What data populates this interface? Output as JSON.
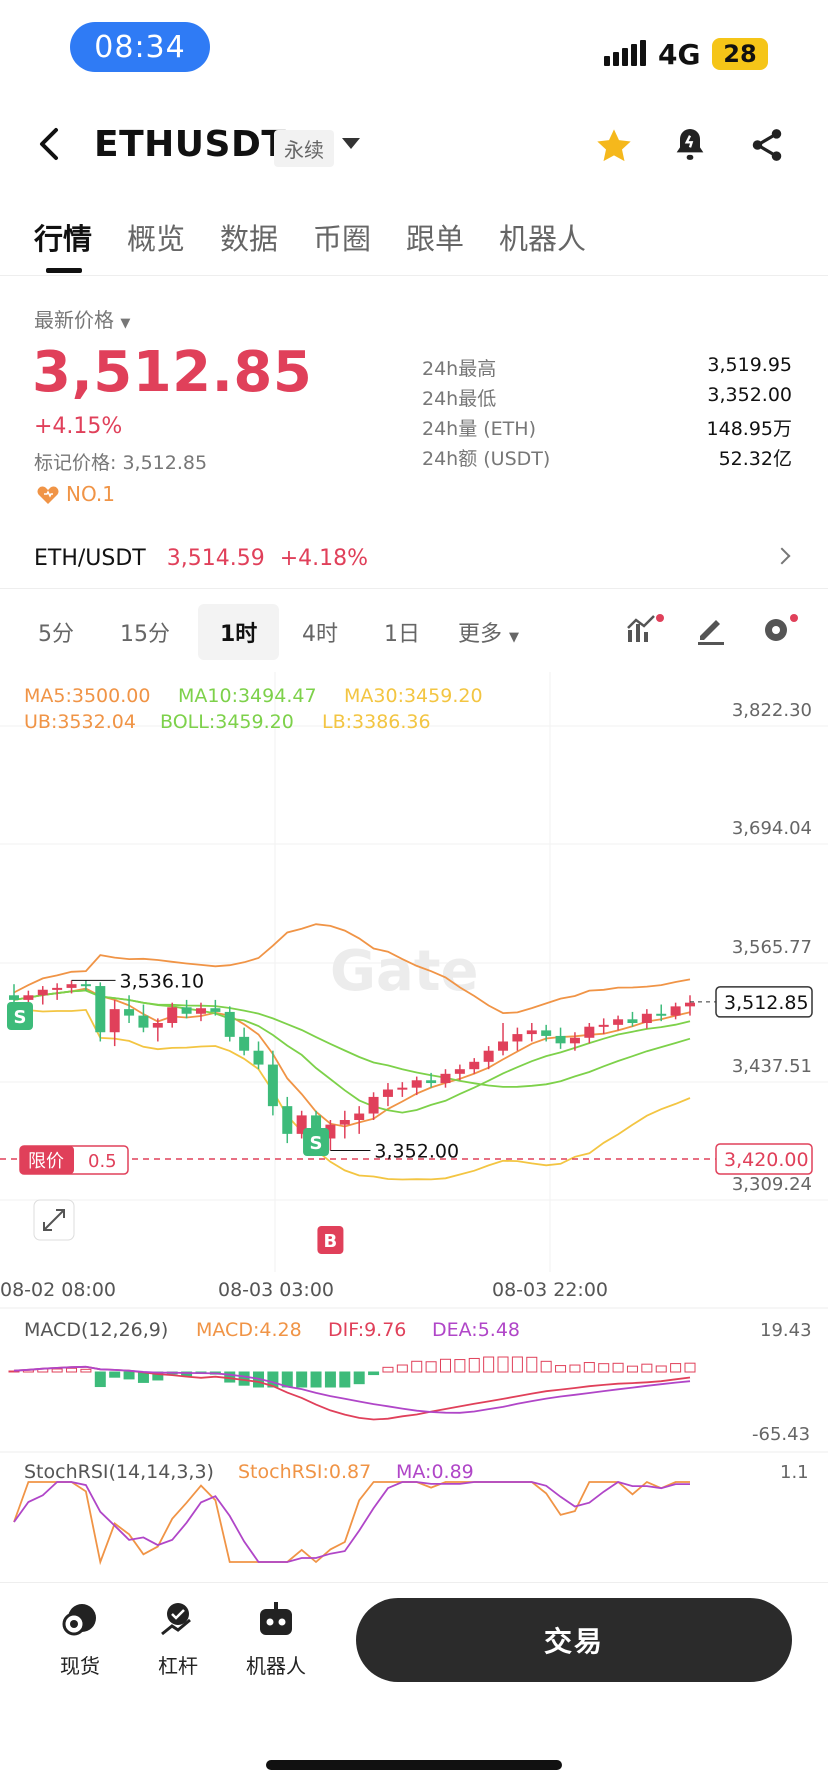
{
  "status": {
    "time": "08:34",
    "network": "4G",
    "battery": "28"
  },
  "header": {
    "symbol": "ETHUSDT",
    "contract_type": "永续"
  },
  "tabs": [
    "行情",
    "概览",
    "数据",
    "币圈",
    "跟单",
    "机器人"
  ],
  "price_block": {
    "label": "最新价格",
    "last_price": "3,512.85",
    "change_pct": "+4.15%",
    "mark_price": "标记价格: 3,512.85",
    "rank": "NO.1"
  },
  "stats": [
    {
      "label": "24h最高",
      "value": "3,519.95"
    },
    {
      "label": "24h最低",
      "value": "3,352.00"
    },
    {
      "label": "24h量 (ETH)",
      "value": "148.95万"
    },
    {
      "label": "24h额 (USDT)",
      "value": "52.32亿"
    }
  ],
  "spot_pair": {
    "name": "ETH/USDT",
    "price": "3,514.59",
    "change": "+4.18%"
  },
  "intervals": [
    "5分",
    "15分",
    "1时",
    "4时",
    "1日",
    "更多"
  ],
  "selected_interval": "1时",
  "chart_data": {
    "type": "candlestick",
    "indicators_main": {
      "MA5": "MA5:3500.00",
      "MA10": "MA10:3494.47",
      "MA30": "MA30:3459.20",
      "UB": "UB:3532.04",
      "BOLL": "BOLL:3459.20",
      "LB": "LB:3386.36"
    },
    "price_axis": [
      "3,822.30",
      "3,694.04",
      "3,565.77",
      "3,437.51",
      "3,309.24"
    ],
    "current_price_tag": "3,512.85",
    "limit_order": {
      "label": "限价",
      "qty": "0.5",
      "price": "3,420.00"
    },
    "high_annot": "3,536.10",
    "low_annot": "3,352.00",
    "signals": {
      "sell": "S",
      "buy": "B"
    },
    "time_axis": [
      "08-02 08:00",
      "08-03 03:00",
      "08-03 22:00"
    ],
    "watermark": "Gate",
    "macd": {
      "label": "MACD(12,26,9)",
      "macd": "MACD:4.28",
      "dif": "DIF:9.76",
      "dea": "DEA:5.48",
      "axis_top": "19.43",
      "axis_bottom": "-65.43"
    },
    "stochrsi": {
      "label": "StochRSI(14,14,3,3)",
      "value": "StochRSI:0.87",
      "ma": "MA:0.89",
      "axis_top": "1.1"
    },
    "candles": [
      [
        3520,
        3532,
        3505,
        3515
      ],
      [
        3515,
        3525,
        3500,
        3520
      ],
      [
        3520,
        3530,
        3510,
        3526
      ],
      [
        3526,
        3533,
        3515,
        3528
      ],
      [
        3528,
        3536,
        3522,
        3532
      ],
      [
        3532,
        3536,
        3525,
        3530
      ],
      [
        3530,
        3534,
        3470,
        3480
      ],
      [
        3480,
        3515,
        3465,
        3505
      ],
      [
        3505,
        3520,
        3490,
        3498
      ],
      [
        3498,
        3510,
        3480,
        3485
      ],
      [
        3485,
        3495,
        3470,
        3490
      ],
      [
        3490,
        3512,
        3485,
        3507
      ],
      [
        3507,
        3515,
        3495,
        3500
      ],
      [
        3500,
        3512,
        3492,
        3506
      ],
      [
        3506,
        3515,
        3498,
        3502
      ],
      [
        3502,
        3508,
        3470,
        3475
      ],
      [
        3475,
        3485,
        3455,
        3460
      ],
      [
        3460,
        3470,
        3440,
        3445
      ],
      [
        3445,
        3460,
        3390,
        3400
      ],
      [
        3400,
        3410,
        3360,
        3370
      ],
      [
        3370,
        3395,
        3365,
        3390
      ],
      [
        3390,
        3395,
        3360,
        3365
      ],
      [
        3365,
        3385,
        3352,
        3380
      ],
      [
        3380,
        3395,
        3365,
        3385
      ],
      [
        3385,
        3400,
        3370,
        3392
      ],
      [
        3392,
        3415,
        3385,
        3410
      ],
      [
        3410,
        3425,
        3400,
        3418
      ],
      [
        3418,
        3426,
        3410,
        3420
      ],
      [
        3420,
        3432,
        3412,
        3428
      ],
      [
        3428,
        3436,
        3420,
        3425
      ],
      [
        3425,
        3440,
        3420,
        3435
      ],
      [
        3435,
        3445,
        3428,
        3440
      ],
      [
        3440,
        3452,
        3435,
        3448
      ],
      [
        3448,
        3465,
        3440,
        3460
      ],
      [
        3460,
        3490,
        3455,
        3470
      ],
      [
        3470,
        3485,
        3460,
        3478
      ],
      [
        3478,
        3490,
        3470,
        3482
      ],
      [
        3482,
        3488,
        3470,
        3476
      ],
      [
        3476,
        3485,
        3462,
        3468
      ],
      [
        3468,
        3480,
        3460,
        3474
      ],
      [
        3474,
        3490,
        3468,
        3486
      ],
      [
        3486,
        3495,
        3478,
        3488
      ],
      [
        3488,
        3498,
        3482,
        3494
      ],
      [
        3494,
        3502,
        3486,
        3490
      ],
      [
        3490,
        3505,
        3484,
        3500
      ],
      [
        3500,
        3510,
        3492,
        3498
      ],
      [
        3498,
        3512,
        3494,
        3508
      ],
      [
        3508,
        3520,
        3498,
        3512
      ]
    ]
  },
  "bottom_bar": {
    "spot": "现货",
    "margin": "杠杆",
    "robot": "机器人",
    "trade": "交易"
  }
}
